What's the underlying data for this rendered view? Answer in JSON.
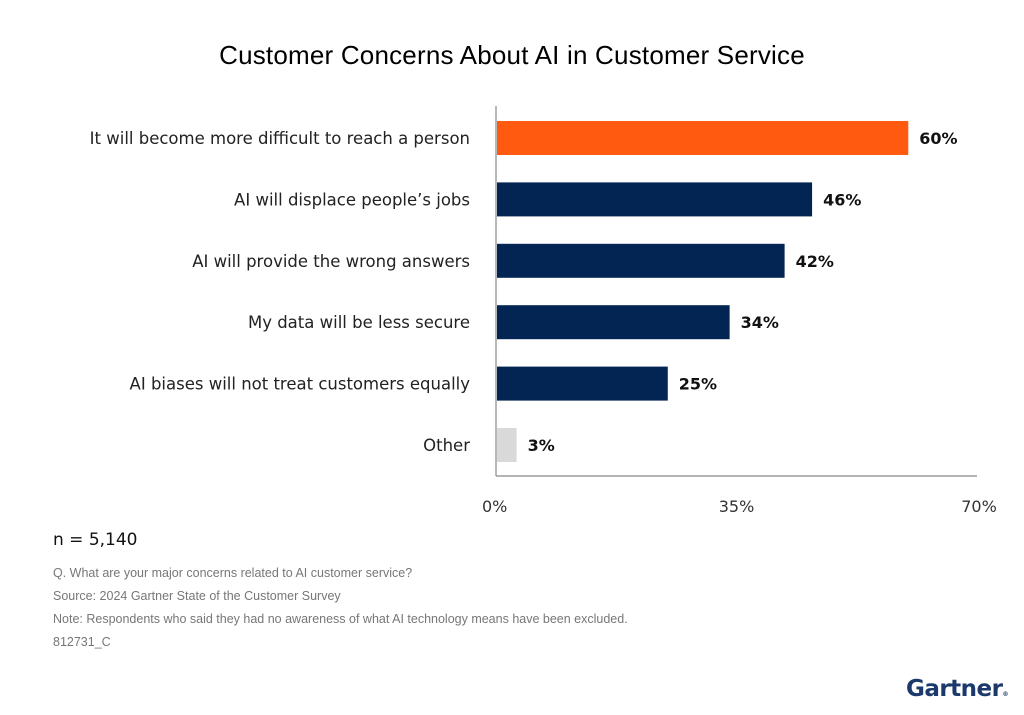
{
  "chart_data": {
    "type": "bar",
    "orientation": "horizontal",
    "title": "Customer Concerns About AI in Customer Service",
    "categories": [
      "It will become more difficult to reach a person",
      "AI will displace people’s jobs",
      "AI will provide the wrong answers",
      "My data will be less secure",
      "AI biases will not treat customers equally",
      "Other"
    ],
    "values": [
      60,
      46,
      42,
      34,
      25,
      3
    ],
    "value_labels": [
      "60%",
      "46%",
      "42%",
      "34%",
      "25%",
      "3%"
    ],
    "bar_colors": [
      "#ff5a0f",
      "#032554",
      "#032554",
      "#032554",
      "#032554",
      "#d9d9d9"
    ],
    "xlabel": "",
    "ylabel": "",
    "xlim": [
      0,
      70
    ],
    "xticks": [
      0,
      35,
      70
    ],
    "xtick_labels": [
      "0%",
      "35%",
      "70%"
    ],
    "grid": false,
    "legend": null
  },
  "footer": {
    "n": "n = 5,140",
    "question": "Q. What are your major concerns related to AI customer service?",
    "source": "Source: 2024 Gartner State of the Customer Survey",
    "note": "Note: Respondents who said they had no awareness of what AI technology means have been excluded.",
    "id": "812731_C"
  },
  "brand": {
    "logo_text": "Gartner",
    "logo_color": "#1b3a6b"
  }
}
